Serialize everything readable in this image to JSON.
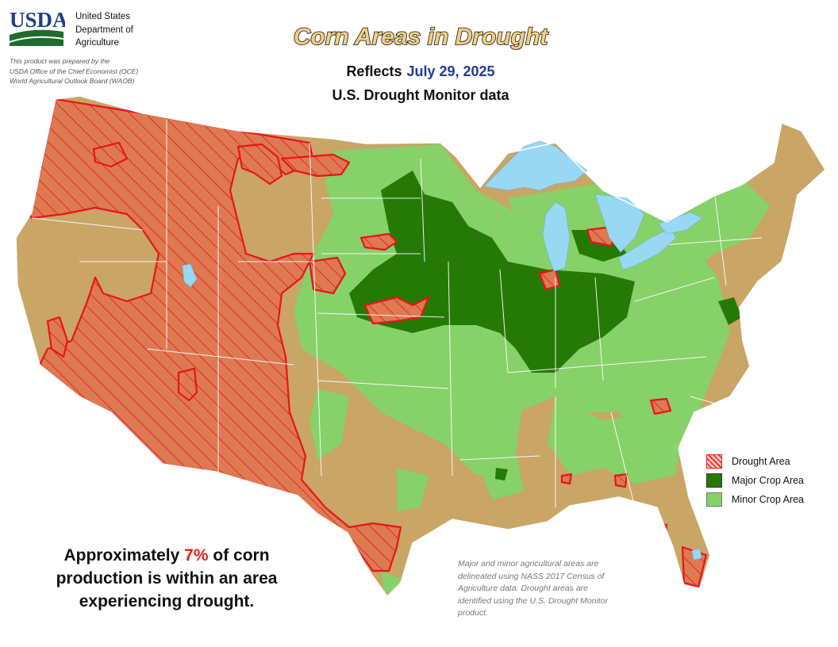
{
  "header": {
    "logo_text": "USDA",
    "agency_lines": [
      "United States",
      "Department of",
      "Agriculture"
    ],
    "prepared_lines": [
      "This product was prepared by the",
      "USDA Office of the Chief Economist (OCE)",
      "World Agricultural Outlook Board (WAOB)"
    ]
  },
  "title": {
    "main": "Corn Areas in Drought",
    "reflects_label": "Reflects",
    "date": "July 29, 2025",
    "subtitle": "U.S. Drought Monitor data"
  },
  "legend": {
    "items": [
      {
        "label": "Drought Area"
      },
      {
        "label": "Major Crop Area"
      },
      {
        "label": "Minor Crop Area"
      }
    ]
  },
  "summary": {
    "prefix": "Approximately ",
    "percent": "7%",
    "suffix": " of corn production is within an area experiencing drought."
  },
  "footnote": {
    "lines": [
      "Major and minor agricultural areas are",
      "delineated using NASS 2017 Census of",
      "Agriculture data.  Drought areas are",
      "identified using the U.S. Drought Monitor",
      "product."
    ]
  },
  "colors": {
    "land": "#c9a566",
    "major_crop": "#257a06",
    "minor_crop": "#86d168",
    "drought_outline": "#e8141a",
    "water": "#98d8f2",
    "title_fill": "#f2cf83",
    "date_text": "#1f3b9a",
    "percent_text": "#e0201c"
  }
}
